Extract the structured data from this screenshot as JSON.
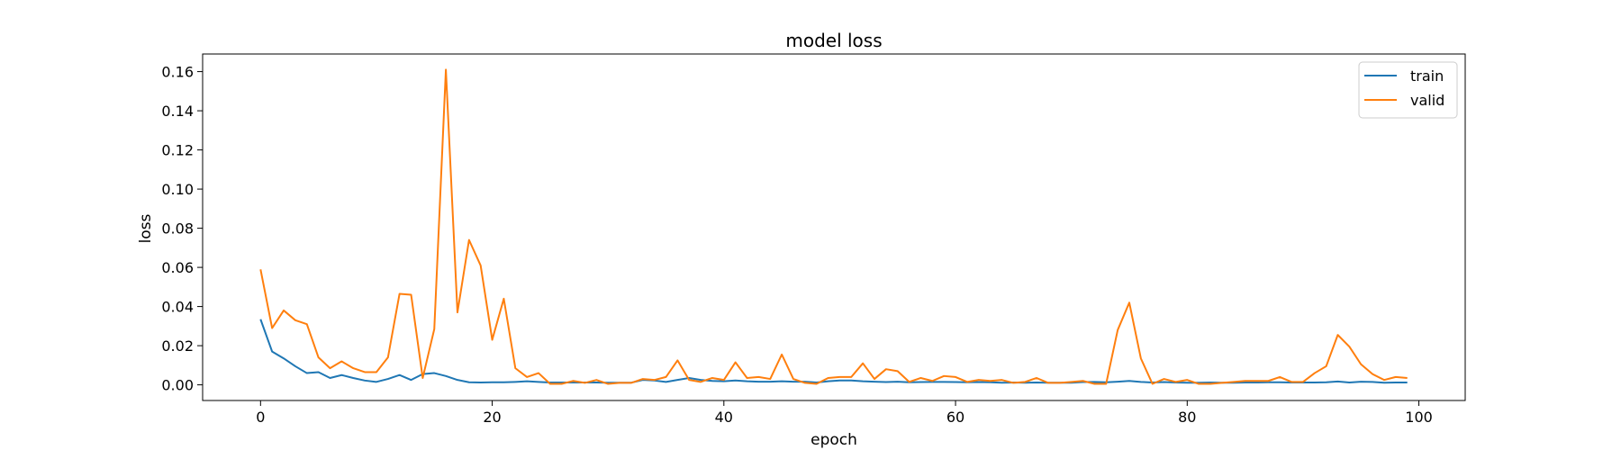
{
  "chart_data": {
    "type": "line",
    "title": "model loss",
    "xlabel": "epoch",
    "ylabel": "loss",
    "xlim": [
      -5,
      104
    ],
    "ylim": [
      -0.008,
      0.169
    ],
    "xticks": [
      0,
      20,
      40,
      60,
      80,
      100
    ],
    "xtick_labels": [
      "0",
      "20",
      "40",
      "60",
      "80",
      "100"
    ],
    "yticks": [
      0.0,
      0.02,
      0.04,
      0.06,
      0.08,
      0.1,
      0.12,
      0.14,
      0.16
    ],
    "ytick_labels": [
      "0.00",
      "0.02",
      "0.04",
      "0.06",
      "0.08",
      "0.10",
      "0.12",
      "0.14",
      "0.16"
    ],
    "grid": false,
    "legend_position": "top-right",
    "x": [
      0,
      1,
      2,
      3,
      4,
      5,
      6,
      7,
      8,
      9,
      10,
      11,
      12,
      13,
      14,
      15,
      16,
      17,
      18,
      19,
      20,
      21,
      22,
      23,
      24,
      25,
      26,
      27,
      28,
      29,
      30,
      31,
      32,
      33,
      34,
      35,
      36,
      37,
      38,
      39,
      40,
      41,
      42,
      43,
      44,
      45,
      46,
      47,
      48,
      49,
      50,
      51,
      52,
      53,
      54,
      55,
      56,
      57,
      58,
      59,
      60,
      61,
      62,
      63,
      64,
      65,
      66,
      67,
      68,
      69,
      70,
      71,
      72,
      73,
      74,
      75,
      76,
      77,
      78,
      79,
      80,
      81,
      82,
      83,
      84,
      85,
      86,
      87,
      88,
      89,
      90,
      91,
      92,
      93,
      94,
      95,
      96,
      97,
      98,
      99
    ],
    "series": [
      {
        "name": "train",
        "color": "#1f77b4",
        "values": [
          0.0335,
          0.017,
          0.0135,
          0.0095,
          0.006,
          0.0065,
          0.0035,
          0.005,
          0.0035,
          0.0022,
          0.0015,
          0.003,
          0.005,
          0.0025,
          0.0055,
          0.006,
          0.0045,
          0.0025,
          0.0013,
          0.0012,
          0.0013,
          0.0013,
          0.0015,
          0.0018,
          0.0015,
          0.0012,
          0.0012,
          0.0012,
          0.0012,
          0.0012,
          0.0011,
          0.0011,
          0.0011,
          0.0025,
          0.0022,
          0.0015,
          0.0025,
          0.0035,
          0.0025,
          0.002,
          0.0018,
          0.0022,
          0.0018,
          0.0016,
          0.0016,
          0.0018,
          0.0016,
          0.0016,
          0.0012,
          0.0018,
          0.0022,
          0.0022,
          0.0018,
          0.0016,
          0.0014,
          0.0016,
          0.0013,
          0.0014,
          0.0015,
          0.0015,
          0.0014,
          0.0013,
          0.0014,
          0.0013,
          0.0011,
          0.0012,
          0.0011,
          0.0012,
          0.0011,
          0.0011,
          0.0011,
          0.0014,
          0.0015,
          0.0013,
          0.0016,
          0.002,
          0.0015,
          0.0012,
          0.0014,
          0.0012,
          0.0011,
          0.0011,
          0.0012,
          0.0011,
          0.0011,
          0.0012,
          0.0012,
          0.0013,
          0.0013,
          0.0012,
          0.0012,
          0.0012,
          0.0013,
          0.0017,
          0.0012,
          0.0016,
          0.0015,
          0.0011,
          0.0012,
          0.0012
        ]
      },
      {
        "name": "valid",
        "color": "#ff7f0e",
        "values": [
          0.059,
          0.029,
          0.038,
          0.033,
          0.031,
          0.014,
          0.0085,
          0.012,
          0.0085,
          0.0065,
          0.0065,
          0.014,
          0.0465,
          0.046,
          0.0035,
          0.0285,
          0.161,
          0.037,
          0.074,
          0.061,
          0.023,
          0.044,
          0.0085,
          0.004,
          0.006,
          0.0005,
          0.0005,
          0.002,
          0.001,
          0.0025,
          0.0005,
          0.001,
          0.001,
          0.003,
          0.0025,
          0.004,
          0.0125,
          0.0025,
          0.0015,
          0.0035,
          0.0025,
          0.0115,
          0.0035,
          0.004,
          0.003,
          0.0155,
          0.003,
          0.001,
          0.0005,
          0.0035,
          0.004,
          0.004,
          0.011,
          0.003,
          0.008,
          0.007,
          0.0015,
          0.0035,
          0.002,
          0.0045,
          0.004,
          0.0015,
          0.0025,
          0.002,
          0.0025,
          0.001,
          0.0015,
          0.0035,
          0.001,
          0.001,
          0.0015,
          0.002,
          0.0005,
          0.0005,
          0.028,
          0.042,
          0.0135,
          0.0005,
          0.003,
          0.0015,
          0.0025,
          0.0005,
          0.0005,
          0.001,
          0.0015,
          0.002,
          0.002,
          0.002,
          0.004,
          0.0015,
          0.0015,
          0.006,
          0.0095,
          0.0255,
          0.0195,
          0.0105,
          0.0055,
          0.0025,
          0.004,
          0.0035
        ]
      }
    ]
  }
}
